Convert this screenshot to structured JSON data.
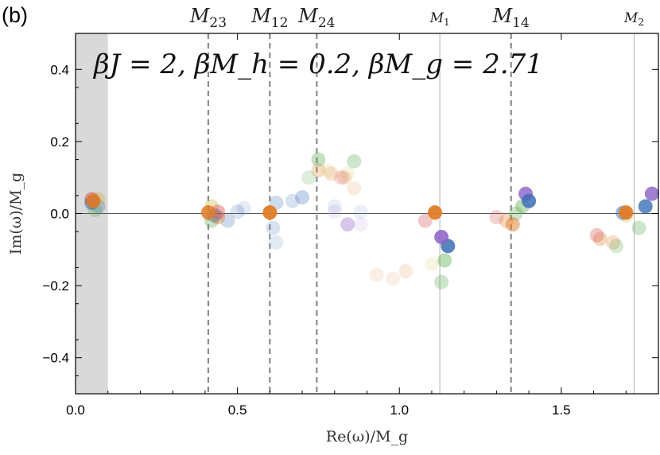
{
  "panel_label": "(b)",
  "chart_data": {
    "type": "scatter",
    "title": "",
    "annotation": "βJ = 2, βM_h = 0.2, βM_g = 2.71",
    "xlabel": "Re(ω)/M_g",
    "ylabel": "Im(ω)/M_g",
    "xlim": [
      0.0,
      1.8
    ],
    "ylim": [
      -0.5,
      0.5
    ],
    "xticks": [
      {
        "v": 0.0,
        "label": "0.0"
      },
      {
        "v": 0.5,
        "label": "0.5"
      },
      {
        "v": 1.0,
        "label": "1.0"
      },
      {
        "v": 1.5,
        "label": "1.5"
      }
    ],
    "yticks": [
      {
        "v": 0.4,
        "label": "0.4"
      },
      {
        "v": 0.2,
        "label": "0.2"
      },
      {
        "v": 0.0,
        "label": "0.0"
      },
      {
        "v": -0.2,
        "label": "−0.2"
      },
      {
        "v": -0.4,
        "label": "−0.4"
      }
    ],
    "shaded_region": [
      0.0,
      0.1
    ],
    "dashed_lines": [
      {
        "x": 0.41,
        "label": "M",
        "sub": "23"
      },
      {
        "x": 0.6,
        "label": "M",
        "sub": "12"
      },
      {
        "x": 0.745,
        "label": "M",
        "sub": "24"
      },
      {
        "x": 1.345,
        "label": "M",
        "sub": "14"
      }
    ],
    "solid_lines": [
      {
        "x": 1.125,
        "label": "M",
        "sub": "1"
      },
      {
        "x": 1.725,
        "label": "M",
        "sub": "2"
      }
    ],
    "colors": {
      "blue": "#3b6fb5",
      "orange": "#e07b28",
      "green": "#5aaa4e",
      "purple": "#8c5fc6",
      "red": "#d14a4a",
      "yellow": "#c9b23a",
      "shade": "#d9d9d9"
    },
    "series": [
      {
        "name": "orange",
        "color": "#e07b28",
        "points": [
          {
            "x": 0.055,
            "y": 0.035,
            "a": 0.9
          },
          {
            "x": 0.41,
            "y": 0.003,
            "a": 0.85
          },
          {
            "x": 0.6,
            "y": 0.003,
            "a": 0.95
          },
          {
            "x": 1.11,
            "y": 0.003,
            "a": 0.95
          },
          {
            "x": 1.7,
            "y": 0.003,
            "a": 0.95
          },
          {
            "x": 0.75,
            "y": 0.12,
            "a": 0.25
          },
          {
            "x": 0.79,
            "y": 0.11,
            "a": 0.2
          },
          {
            "x": 0.83,
            "y": 0.1,
            "a": 0.2
          },
          {
            "x": 0.86,
            "y": 0.07,
            "a": 0.15
          },
          {
            "x": 0.93,
            "y": -0.17,
            "a": 0.12
          },
          {
            "x": 0.98,
            "y": -0.18,
            "a": 0.12
          },
          {
            "x": 1.02,
            "y": -0.16,
            "a": 0.15
          },
          {
            "x": 1.35,
            "y": -0.03,
            "a": 0.5
          },
          {
            "x": 1.33,
            "y": -0.02,
            "a": 0.3
          },
          {
            "x": 1.62,
            "y": -0.07,
            "a": 0.3
          },
          {
            "x": 1.66,
            "y": -0.08,
            "a": 0.25
          },
          {
            "x": 0.44,
            "y": -0.01,
            "a": 0.4
          }
        ]
      },
      {
        "name": "blue",
        "color": "#3b6fb5",
        "points": [
          {
            "x": 0.05,
            "y": 0.03,
            "a": 0.6
          },
          {
            "x": 0.07,
            "y": 0.02,
            "a": 0.3
          },
          {
            "x": 0.43,
            "y": -0.005,
            "a": 0.4
          },
          {
            "x": 0.47,
            "y": -0.02,
            "a": 0.25
          },
          {
            "x": 0.5,
            "y": 0.005,
            "a": 0.2
          },
          {
            "x": 0.52,
            "y": 0.015,
            "a": 0.15
          },
          {
            "x": 0.62,
            "y": 0.03,
            "a": 0.25
          },
          {
            "x": 0.67,
            "y": 0.035,
            "a": 0.2
          },
          {
            "x": 0.7,
            "y": 0.045,
            "a": 0.3
          },
          {
            "x": 0.61,
            "y": -0.04,
            "a": 0.2
          },
          {
            "x": 0.62,
            "y": -0.08,
            "a": 0.15
          },
          {
            "x": 1.15,
            "y": -0.09,
            "a": 0.85
          },
          {
            "x": 1.4,
            "y": 0.035,
            "a": 0.85
          },
          {
            "x": 1.76,
            "y": 0.02,
            "a": 0.8
          },
          {
            "x": 1.69,
            "y": 0.002,
            "a": 0.5
          },
          {
            "x": 0.8,
            "y": 0.02,
            "a": 0.1
          },
          {
            "x": 0.88,
            "y": 0.005,
            "a": 0.1
          }
        ]
      },
      {
        "name": "green",
        "color": "#5aaa4e",
        "points": [
          {
            "x": 0.75,
            "y": 0.15,
            "a": 0.35
          },
          {
            "x": 0.72,
            "y": 0.1,
            "a": 0.2
          },
          {
            "x": 0.86,
            "y": 0.145,
            "a": 0.3
          },
          {
            "x": 1.14,
            "y": -0.13,
            "a": 0.4
          },
          {
            "x": 1.13,
            "y": -0.19,
            "a": 0.3
          },
          {
            "x": 1.36,
            "y": 0.0,
            "a": 0.3
          },
          {
            "x": 1.38,
            "y": 0.02,
            "a": 0.4
          },
          {
            "x": 1.74,
            "y": -0.04,
            "a": 0.3
          },
          {
            "x": 1.67,
            "y": -0.09,
            "a": 0.25
          },
          {
            "x": 0.42,
            "y": -0.02,
            "a": 0.35
          },
          {
            "x": 0.06,
            "y": 0.01,
            "a": 0.3
          }
        ]
      },
      {
        "name": "purple",
        "color": "#8c5fc6",
        "points": [
          {
            "x": 1.13,
            "y": -0.065,
            "a": 0.85
          },
          {
            "x": 1.39,
            "y": 0.055,
            "a": 0.8
          },
          {
            "x": 1.78,
            "y": 0.055,
            "a": 0.8
          },
          {
            "x": 0.84,
            "y": -0.03,
            "a": 0.35
          },
          {
            "x": 0.88,
            "y": -0.03,
            "a": 0.1
          },
          {
            "x": 0.8,
            "y": 0.005,
            "a": 0.12
          }
        ]
      },
      {
        "name": "red",
        "color": "#d14a4a",
        "points": [
          {
            "x": 0.05,
            "y": 0.04,
            "a": 0.5
          },
          {
            "x": 0.44,
            "y": 0.005,
            "a": 0.4
          },
          {
            "x": 1.08,
            "y": -0.02,
            "a": 0.3
          },
          {
            "x": 1.3,
            "y": -0.01,
            "a": 0.25
          },
          {
            "x": 1.61,
            "y": -0.06,
            "a": 0.3
          },
          {
            "x": 0.82,
            "y": 0.1,
            "a": 0.2
          }
        ]
      },
      {
        "name": "yellow",
        "color": "#c9b23a",
        "points": [
          {
            "x": 0.07,
            "y": 0.04,
            "a": 0.35
          },
          {
            "x": 0.42,
            "y": 0.02,
            "a": 0.35
          },
          {
            "x": 0.78,
            "y": 0.12,
            "a": 0.15
          },
          {
            "x": 0.84,
            "y": 0.11,
            "a": 0.15
          },
          {
            "x": 1.1,
            "y": -0.14,
            "a": 0.15
          },
          {
            "x": 1.7,
            "y": -0.005,
            "a": 0.3
          }
        ]
      }
    ]
  }
}
